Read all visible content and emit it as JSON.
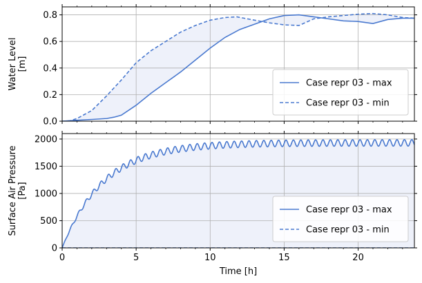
{
  "chart_data": [
    {
      "type": "line",
      "ylabel_line1": "Water Level",
      "ylabel_line2": "[m]",
      "xlabel": "",
      "xlim": [
        0,
        23.8
      ],
      "ylim": [
        0,
        0.86
      ],
      "xticks": [
        "0",
        "5",
        "10",
        "15",
        "20"
      ],
      "yticks": [
        "0.0",
        "0.2",
        "0.4",
        "0.6",
        "0.8"
      ],
      "grid": true,
      "legend_position": "lower right",
      "shaded_between_series": true,
      "series": [
        {
          "name": "Case repr 03 - max",
          "style": "solid",
          "x": [
            0,
            0.5,
            1,
            2,
            3,
            3.5,
            4,
            5,
            6,
            7,
            8,
            9,
            10,
            11,
            12,
            13,
            14,
            15,
            16,
            17,
            18,
            19,
            20,
            21,
            22,
            23,
            23.8
          ],
          "y": [
            0,
            0.003,
            0.007,
            0.013,
            0.02,
            0.03,
            0.045,
            0.12,
            0.21,
            0.29,
            0.37,
            0.46,
            0.55,
            0.63,
            0.69,
            0.73,
            0.77,
            0.795,
            0.8,
            0.785,
            0.77,
            0.755,
            0.75,
            0.735,
            0.765,
            0.775,
            0.775
          ]
        },
        {
          "name": "Case repr 03 - min",
          "style": "dashed",
          "x": [
            0,
            0.5,
            1,
            2,
            3,
            4,
            5,
            6,
            7,
            8,
            9,
            10,
            11,
            11.8,
            13,
            14,
            15,
            16,
            17,
            18,
            19,
            20,
            21,
            22,
            23,
            23.8
          ],
          "y": [
            0,
            0.002,
            0.02,
            0.08,
            0.19,
            0.31,
            0.44,
            0.53,
            0.6,
            0.67,
            0.72,
            0.76,
            0.78,
            0.785,
            0.76,
            0.74,
            0.725,
            0.72,
            0.77,
            0.785,
            0.795,
            0.805,
            0.81,
            0.8,
            0.78,
            0.775
          ]
        }
      ]
    },
    {
      "type": "line",
      "ylabel_line1": "Surface Air Pressure",
      "ylabel_line2": "[Pa]",
      "xlabel": "Time [h]",
      "xlim": [
        0,
        23.8
      ],
      "ylim": [
        0,
        2100
      ],
      "xticks": [
        "0",
        "5",
        "10",
        "15",
        "20"
      ],
      "yticks": [
        "0",
        "500",
        "1000",
        "1500",
        "2000"
      ],
      "grid": true,
      "legend_position": "lower right",
      "shaded_between_series": true,
      "series": [
        {
          "name": "Case repr 03 - max",
          "style": "solid",
          "base": {
            "rise_start": 0,
            "plateau": 1930,
            "time_constant_h": 2.8,
            "oscillation_period_h": 0.5,
            "oscillation_amplitude": 60
          }
        },
        {
          "name": "Case repr 03 - min",
          "style": "dashed",
          "constant_value": 0
        }
      ]
    }
  ],
  "colors": {
    "series": "#4878cf",
    "fill": "#eef1fa",
    "grid": "#b0b0b0",
    "axis": "#000000"
  }
}
